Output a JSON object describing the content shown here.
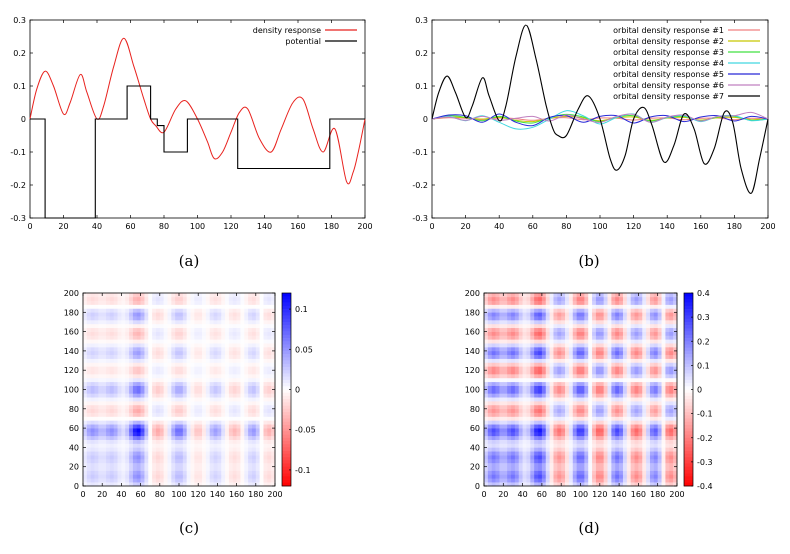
{
  "chart_data": [
    {
      "panel": "a",
      "caption": "(a)",
      "type": "line",
      "xlim": [
        0,
        200
      ],
      "ylim": [
        -0.3,
        0.3
      ],
      "xticks": [
        "0",
        "20",
        "40",
        "60",
        "80",
        "100",
        "120",
        "140",
        "160",
        "180",
        "200"
      ],
      "yticks": [
        "-0.3",
        "-0.2",
        "-0.1",
        "0",
        "0.1",
        "0.2",
        "0.3"
      ],
      "legend_position": "top-right",
      "series": [
        {
          "name": "density response",
          "color": "#e8221e",
          "x": [
            0,
            4,
            9,
            14,
            20,
            24,
            30,
            34,
            40,
            44,
            50,
            56,
            62,
            68,
            72,
            75,
            80,
            87,
            93,
            100,
            106,
            110,
            115,
            120,
            125,
            130,
            137,
            144,
            150,
            157,
            163,
            169,
            175,
            182,
            189,
            193,
            196,
            200
          ],
          "y": [
            0,
            0.09,
            0.145,
            0.1,
            0.015,
            0.05,
            0.135,
            0.08,
            0,
            0.04,
            0.16,
            0.245,
            0.16,
            0.06,
            0.0,
            -0.02,
            -0.04,
            0.03,
            0.055,
            0.0,
            -0.07,
            -0.12,
            -0.1,
            -0.04,
            0.02,
            0.03,
            -0.06,
            -0.1,
            -0.03,
            0.05,
            0.06,
            -0.03,
            -0.1,
            -0.03,
            -0.19,
            -0.16,
            -0.1,
            0
          ]
        },
        {
          "name": "potential",
          "color": "#000000",
          "x": [
            0,
            9,
            9,
            39,
            39,
            58,
            58,
            72,
            72,
            76,
            76,
            80,
            80,
            94,
            94,
            124,
            124,
            179,
            179,
            200
          ],
          "y": [
            0,
            0,
            -0.3,
            -0.3,
            0,
            0,
            0.1,
            0.1,
            0,
            0,
            -0.02,
            -0.02,
            -0.1,
            -0.1,
            0,
            0,
            -0.15,
            -0.15,
            0,
            0
          ]
        }
      ]
    },
    {
      "panel": "b",
      "caption": "(b)",
      "type": "line",
      "xlim": [
        0,
        200
      ],
      "ylim": [
        -0.3,
        0.3
      ],
      "xticks": [
        "0",
        "20",
        "40",
        "60",
        "80",
        "100",
        "120",
        "140",
        "160",
        "180",
        "200"
      ],
      "yticks": [
        "-0.3",
        "-0.2",
        "-0.1",
        "0",
        "0.1",
        "0.2",
        "0.3"
      ],
      "legend_position": "top-right",
      "series": [
        {
          "name": "orbital density response #1",
          "color": "#f08080",
          "x": [
            0,
            10,
            20,
            30,
            40,
            50,
            60,
            70,
            80,
            90,
            100,
            110,
            120,
            130,
            140,
            150,
            160,
            170,
            180,
            190,
            200
          ],
          "y": [
            0,
            0.004,
            0.002,
            -0.002,
            0.003,
            0.001,
            -0.004,
            0.002,
            0.004,
            -0.002,
            0.003,
            0.002,
            -0.003,
            0.002,
            0.003,
            -0.002,
            0.002,
            0.003,
            -0.002,
            0.002,
            0
          ]
        },
        {
          "name": "orbital density response #2",
          "color": "#c8c800",
          "x": [
            0,
            10,
            20,
            30,
            40,
            50,
            60,
            70,
            80,
            90,
            100,
            110,
            120,
            130,
            140,
            150,
            160,
            170,
            180,
            190,
            200
          ],
          "y": [
            0,
            0.006,
            0.004,
            0.0,
            0.005,
            -0.004,
            -0.008,
            0.002,
            0.008,
            0.003,
            -0.005,
            0.004,
            0.006,
            -0.004,
            0.003,
            0.005,
            -0.003,
            0.004,
            0.005,
            -0.002,
            0
          ]
        },
        {
          "name": "orbital density response #3",
          "color": "#40e040",
          "x": [
            0,
            10,
            20,
            30,
            40,
            50,
            60,
            70,
            80,
            90,
            100,
            110,
            120,
            130,
            140,
            150,
            160,
            170,
            180,
            190,
            200
          ],
          "y": [
            0,
            0.01,
            0.005,
            -0.005,
            0.008,
            -0.006,
            -0.012,
            0.004,
            0.014,
            0.006,
            -0.008,
            0.006,
            0.01,
            -0.006,
            0.004,
            0.008,
            -0.005,
            0.006,
            0.008,
            -0.004,
            0
          ]
        },
        {
          "name": "orbital density response #4",
          "color": "#40d8e0",
          "x": [
            0,
            10,
            20,
            30,
            40,
            50,
            60,
            70,
            80,
            90,
            100,
            110,
            120,
            130,
            140,
            150,
            160,
            170,
            180,
            190,
            200
          ],
          "y": [
            0,
            0.008,
            -0.005,
            0.01,
            -0.01,
            -0.03,
            -0.025,
            0.0,
            0.025,
            0.01,
            -0.015,
            0.005,
            0.015,
            -0.01,
            0.005,
            0.01,
            -0.008,
            0.008,
            0.01,
            -0.005,
            0
          ]
        },
        {
          "name": "orbital density response #5",
          "color": "#2828d8",
          "x": [
            0,
            10,
            20,
            30,
            40,
            50,
            60,
            70,
            80,
            90,
            100,
            110,
            120,
            130,
            140,
            150,
            160,
            170,
            180,
            190,
            200
          ],
          "y": [
            0,
            0.012,
            0.01,
            -0.01,
            0.015,
            -0.01,
            -0.02,
            0.005,
            0.01,
            -0.01,
            0.008,
            0.01,
            -0.012,
            0.006,
            0.01,
            -0.008,
            0.006,
            0.01,
            -0.006,
            0.008,
            0
          ]
        },
        {
          "name": "orbital density response #6",
          "color": "#c080c0",
          "x": [
            0,
            10,
            20,
            30,
            40,
            50,
            60,
            70,
            80,
            90,
            100,
            110,
            120,
            130,
            140,
            150,
            160,
            170,
            180,
            190,
            200
          ],
          "y": [
            0,
            0.006,
            -0.004,
            0.008,
            -0.004,
            0.002,
            0.008,
            -0.006,
            0.012,
            0.0,
            -0.01,
            0.008,
            0.014,
            -0.01,
            0.006,
            0.012,
            -0.006,
            0.008,
            0.01,
            0.02,
            0
          ]
        },
        {
          "name": "orbital density response #7",
          "color": "#000000",
          "x": [
            0,
            4,
            9,
            14,
            20,
            24,
            30,
            34,
            40,
            44,
            50,
            56,
            62,
            68,
            72,
            75,
            80,
            87,
            93,
            100,
            106,
            110,
            115,
            120,
            126,
            131,
            138,
            144,
            150,
            156,
            162,
            168,
            174,
            179,
            184,
            190,
            195,
            200
          ],
          "y": [
            0,
            0.08,
            0.13,
            0.08,
            0.005,
            0.04,
            0.125,
            0.07,
            -0.005,
            0.04,
            0.19,
            0.285,
            0.18,
            0.04,
            -0.03,
            -0.05,
            -0.05,
            0.03,
            0.07,
            0.0,
            -0.12,
            -0.155,
            -0.11,
            0.0,
            0.035,
            -0.02,
            -0.13,
            -0.08,
            0.015,
            -0.03,
            -0.135,
            -0.09,
            0.02,
            -0.01,
            -0.15,
            -0.225,
            -0.12,
            0
          ]
        }
      ]
    },
    {
      "panel": "c",
      "caption": "(c)",
      "type": "heatmap",
      "xlim": [
        0,
        200
      ],
      "ylim": [
        0,
        200
      ],
      "xticks": [
        "0",
        "20",
        "40",
        "60",
        "80",
        "100",
        "120",
        "140",
        "160",
        "180",
        "200"
      ],
      "yticks": [
        "0",
        "20",
        "40",
        "60",
        "80",
        "100",
        "120",
        "140",
        "160",
        "180",
        "200"
      ],
      "colorbar_range": [
        -0.12,
        0.12
      ],
      "colorbar_ticks": [
        "0.1",
        "0.05",
        "0",
        "-0.05",
        "-0.1"
      ],
      "colorbar_values": [
        0.1,
        0.05,
        0,
        -0.05,
        -0.1
      ],
      "peak_positions": [
        10,
        30,
        57,
        78,
        100,
        120,
        138,
        158,
        178,
        192
      ],
      "peak_weights": [
        0.45,
        0.45,
        1.0,
        -0.35,
        0.6,
        -0.25,
        0.4,
        -0.3,
        0.45,
        -0.35
      ],
      "value_scale": 0.12
    },
    {
      "panel": "d",
      "caption": "(d)",
      "type": "heatmap",
      "xlim": [
        0,
        200
      ],
      "ylim": [
        0,
        200
      ],
      "xticks": [
        "0",
        "20",
        "40",
        "60",
        "80",
        "100",
        "120",
        "140",
        "160",
        "180",
        "200"
      ],
      "yticks": [
        "0",
        "20",
        "40",
        "60",
        "80",
        "100",
        "120",
        "140",
        "160",
        "180",
        "200"
      ],
      "colorbar_range": [
        -0.4,
        0.4
      ],
      "colorbar_ticks": [
        "0.4",
        "0.3",
        "0.2",
        "0.1",
        "0",
        "-0.1",
        "-0.2",
        "-0.3",
        "-0.4"
      ],
      "colorbar_values": [
        0.4,
        0.3,
        0.2,
        0.1,
        0,
        -0.1,
        -0.2,
        -0.3,
        -0.4
      ],
      "peak_positions": [
        10,
        30,
        57,
        78,
        100,
        120,
        138,
        158,
        178,
        192
      ],
      "peak_weights": [
        0.75,
        0.75,
        1.0,
        -0.6,
        0.85,
        -0.7,
        0.8,
        -0.65,
        0.75,
        -0.7
      ],
      "value_scale": 0.38
    }
  ]
}
